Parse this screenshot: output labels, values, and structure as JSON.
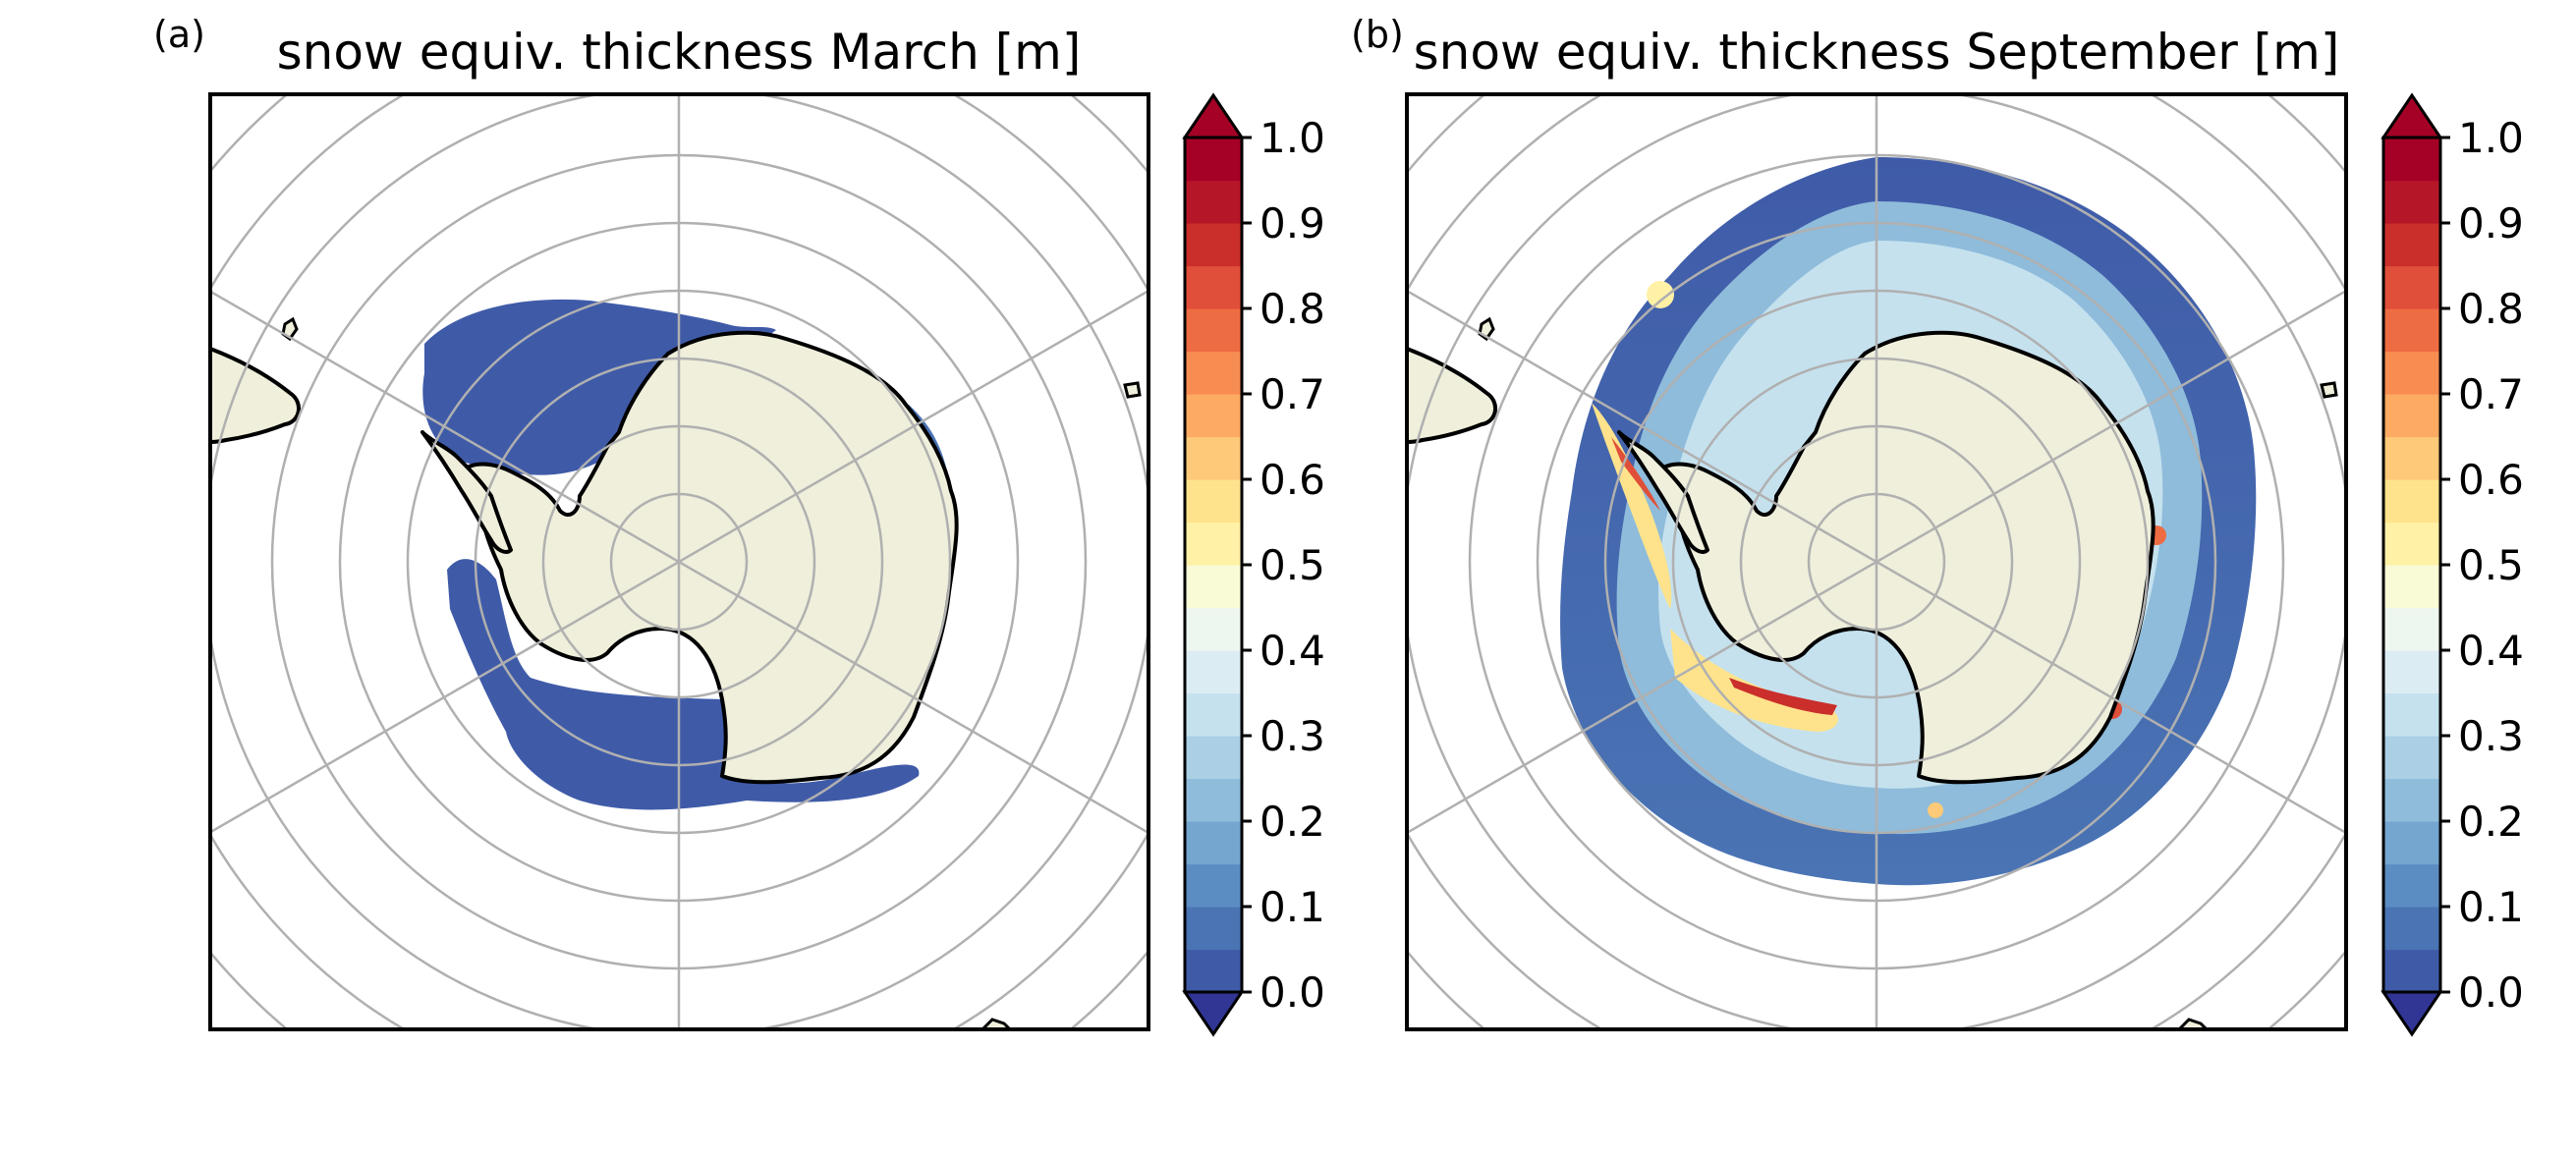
{
  "figure": {
    "panels": [
      {
        "letter": "(a)",
        "title": "snow equiv. thickness March [m]",
        "month": "March",
        "ice_field": "uniform low snow thickness (0.0-0.05 m) in Weddell and Ross seas"
      },
      {
        "letter": "(b)",
        "title": "snow equiv. thickness September [m]",
        "month": "September",
        "ice_field": "circumpolar ring; mostly 0.0-0.35 m, up to 0.9-1.0 m along west Weddell and Ross coasts"
      }
    ],
    "colorbar": {
      "colormap": "RdYlBu_r",
      "extend": "both",
      "min": 0.0,
      "max": 1.0,
      "step": 0.05,
      "tick_labels": [
        "0.0",
        "0.1",
        "0.2",
        "0.3",
        "0.4",
        "0.5",
        "0.6",
        "0.7",
        "0.8",
        "0.9",
        "1.0"
      ],
      "colors": [
        "#3f5ba8",
        "#4a74b4",
        "#5b8dc2",
        "#74a6cf",
        "#8fbcdb",
        "#abd0e5",
        "#c5e1ee",
        "#dcecf3",
        "#eef7ef",
        "#f9fbd7",
        "#fff1a6",
        "#fee38c",
        "#fec978",
        "#fdab62",
        "#f88d52",
        "#ee6c43",
        "#e04f39",
        "#ca2f2b",
        "#b61728",
        "#a50026"
      ],
      "under_color": "#313695",
      "over_color": "#a50026"
    },
    "map": {
      "projection": "south polar stereographic",
      "land_color": "#efefdb",
      "coastline_color": "#000000",
      "gridline_color": "#b0b0b0"
    }
  }
}
